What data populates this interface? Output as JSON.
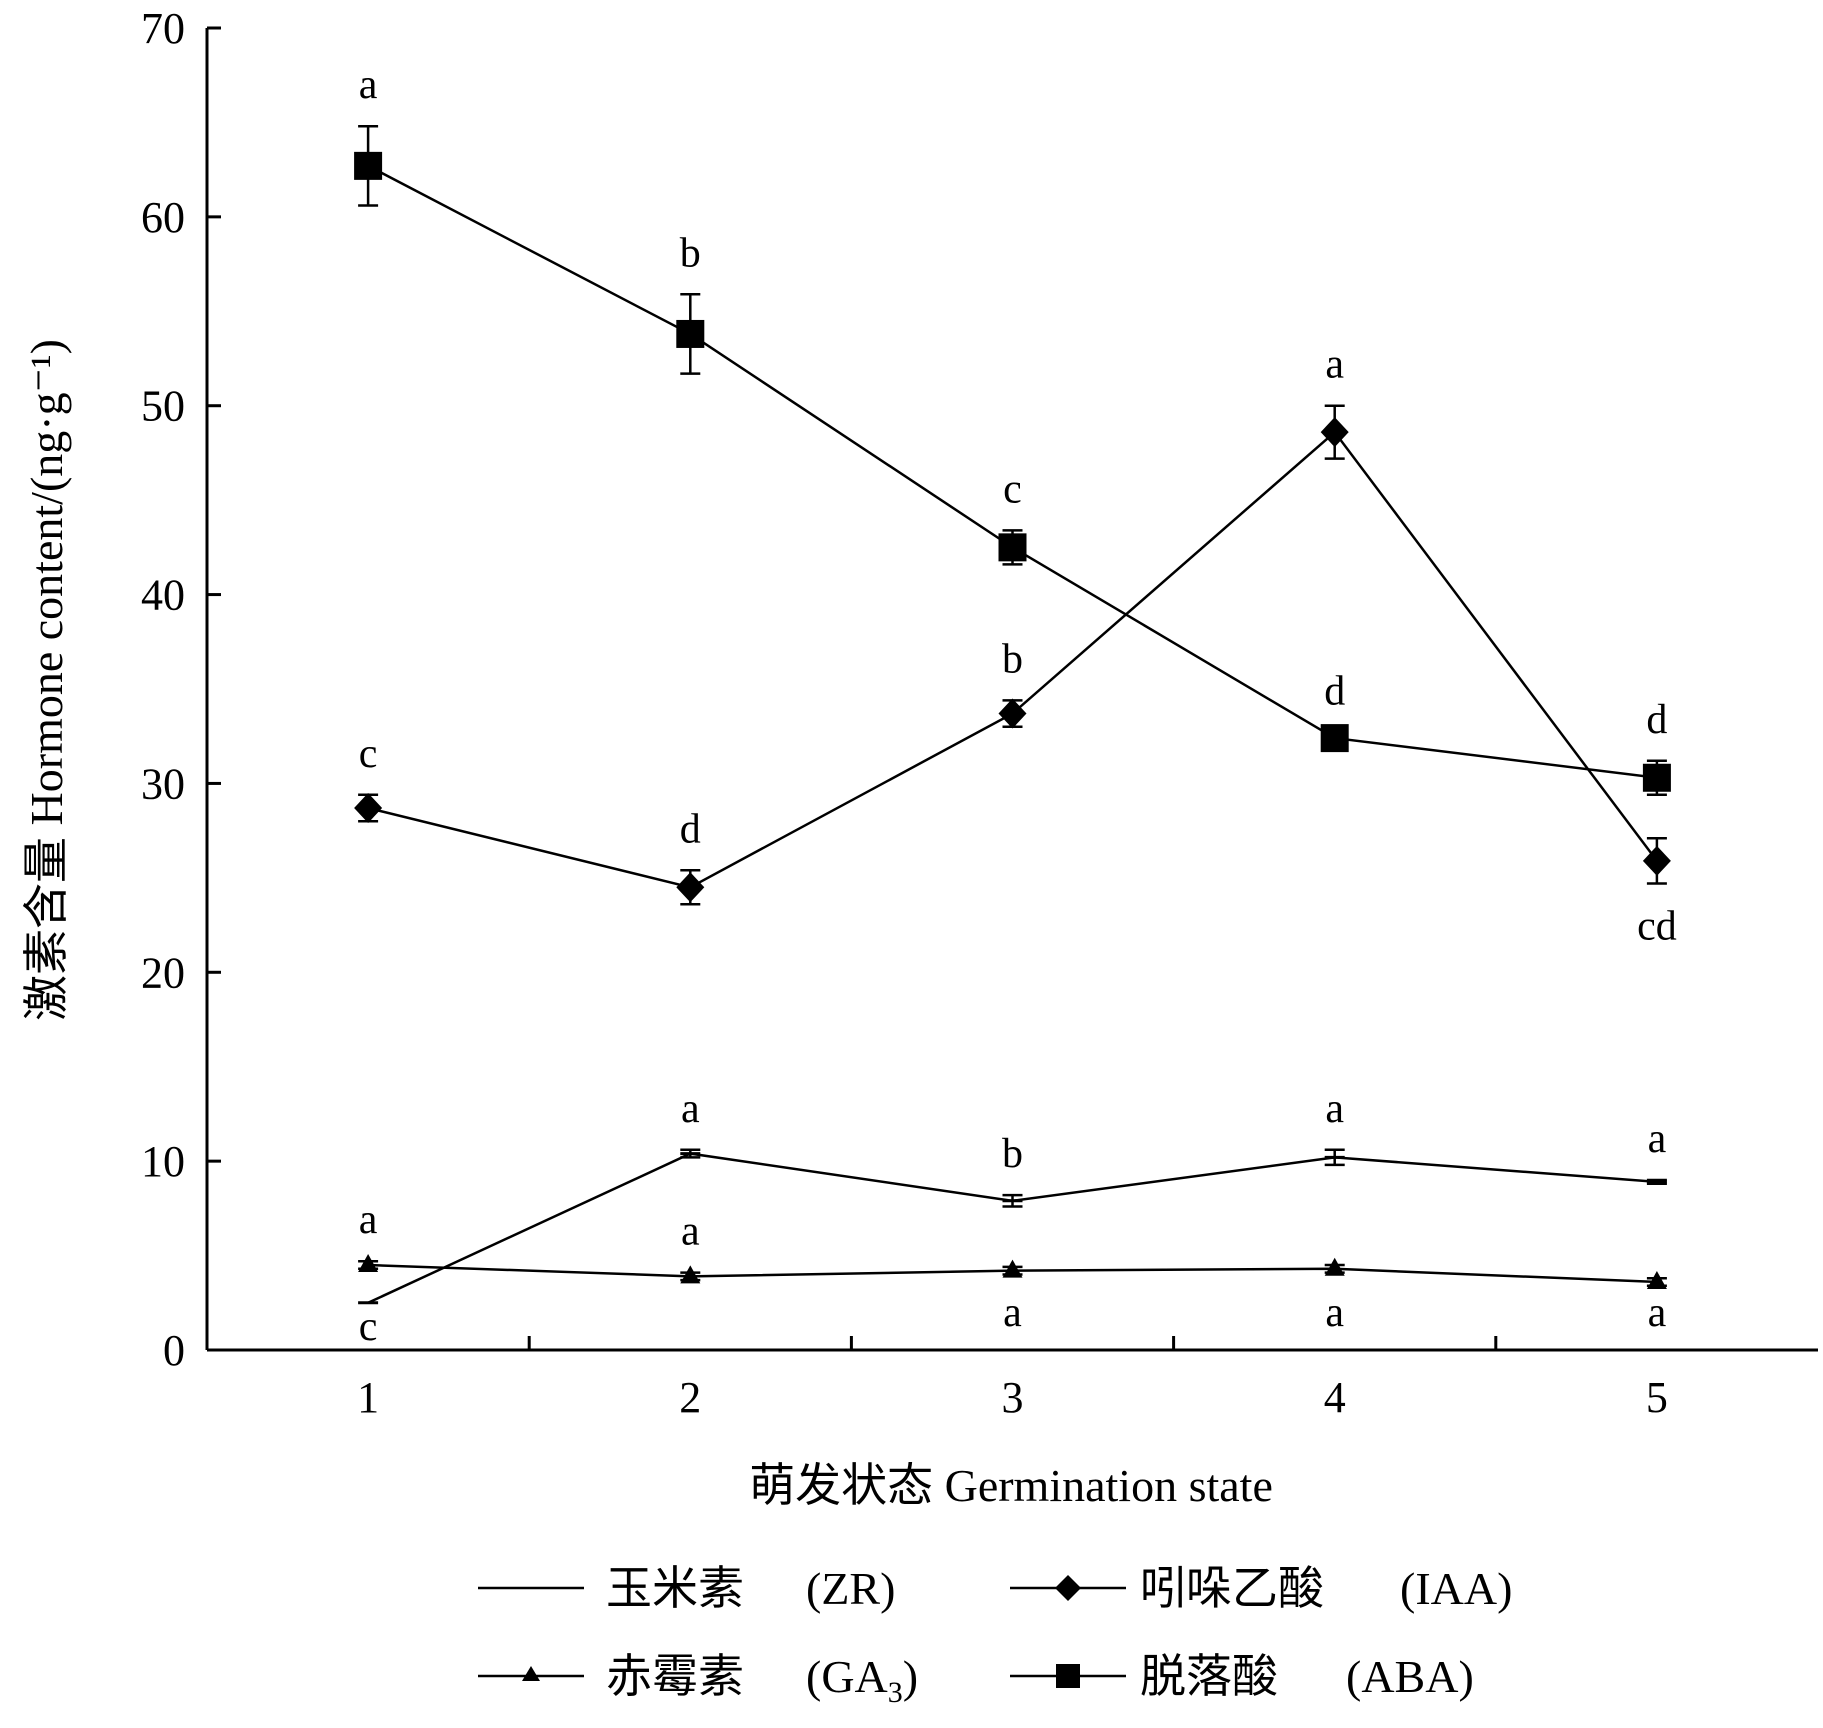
{
  "chart_data": {
    "type": "line",
    "xlabel": "萌发状态  Germination state",
    "ylabel": "激素含量  Hormone content/(ng·g⁻¹)",
    "x": [
      1,
      2,
      3,
      4,
      5
    ],
    "xlim": [
      0.5,
      5.5
    ],
    "ylim": [
      0,
      70
    ],
    "yticks": [
      0,
      10,
      20,
      30,
      40,
      50,
      60,
      70
    ],
    "grid": false,
    "legend_position": "bottom",
    "series": [
      {
        "name": "玉米素 (ZR)",
        "marker": "none",
        "values": [
          2.5,
          10.4,
          7.9,
          10.2,
          8.9
        ],
        "errors": [
          0.0,
          0.2,
          0.3,
          0.4,
          0.1
        ],
        "labels": [
          "c",
          "a",
          "b",
          "a",
          "a"
        ]
      },
      {
        "name": "赤霉素 (GA3)",
        "marker": "triangle",
        "values": [
          4.5,
          3.9,
          4.2,
          4.3,
          3.6
        ],
        "errors": [
          0.2,
          0.2,
          0.2,
          0.2,
          0.2
        ],
        "labels": [
          "a",
          "a",
          "a",
          "a",
          "a"
        ]
      },
      {
        "name": "吲哚乙酸 (IAA)",
        "marker": "diamond",
        "values": [
          28.7,
          24.5,
          33.7,
          48.6,
          25.9
        ],
        "errors": [
          0.7,
          0.9,
          0.7,
          1.4,
          1.2
        ],
        "labels": [
          "c",
          "d",
          "b",
          "a",
          "cd"
        ]
      },
      {
        "name": "脱落酸 (ABA)",
        "marker": "square",
        "values": [
          62.7,
          53.8,
          42.5,
          32.4,
          30.3
        ],
        "errors": [
          2.1,
          2.1,
          0.9,
          0.3,
          0.9
        ],
        "labels": [
          "a",
          "b",
          "c",
          "d",
          "d"
        ]
      }
    ]
  },
  "legend": {
    "zr": {
      "cn": "玉米素",
      "en": "(ZR)"
    },
    "ga3": {
      "cn": "赤霉素",
      "en_pre": "(GA",
      "en_sub": "3",
      "en_post": ")"
    },
    "iaa": {
      "cn": "吲哚乙酸",
      "en": "(IAA)"
    },
    "aba": {
      "cn": "脱落酸",
      "en": "(ABA)"
    }
  }
}
